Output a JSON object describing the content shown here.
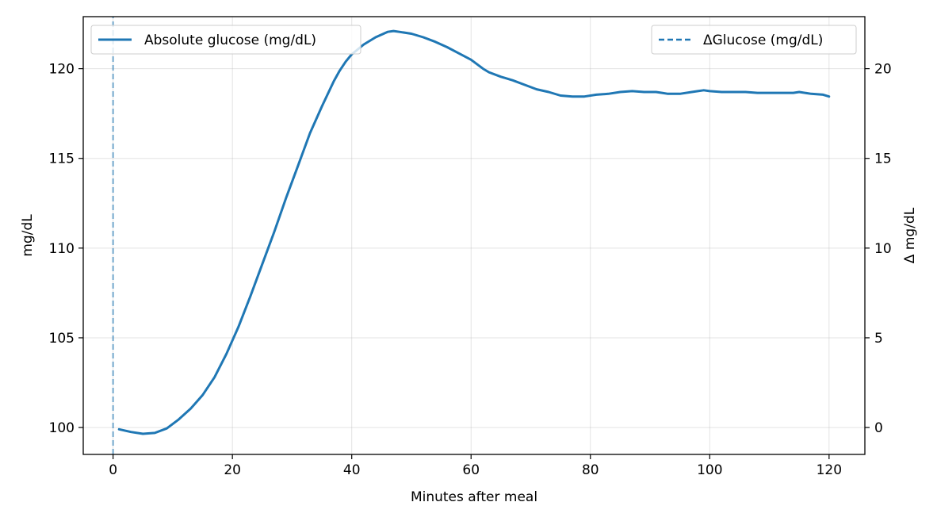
{
  "chart_data": {
    "type": "line",
    "xlabel": "Minutes after meal",
    "ylabel": "mg/dL",
    "y2label": "Δ mg/dL",
    "xlim": [
      -5,
      126
    ],
    "ylim": [
      98.5,
      122.9
    ],
    "y2lim": [
      -1.5,
      22.9
    ],
    "x_ticks": [
      0,
      20,
      40,
      60,
      80,
      100,
      120
    ],
    "y_ticks": [
      100,
      105,
      110,
      115,
      120
    ],
    "y2_ticks": [
      0,
      5,
      10,
      15,
      20
    ],
    "grid": true,
    "colors": {
      "series": "#1f77b4",
      "delta_line": "#1f77b4"
    },
    "series": [
      {
        "name": "Absolute glucose (mg/dL)",
        "axis": "left",
        "style": "solid",
        "x": [
          1,
          3,
          5,
          7,
          9,
          11,
          13,
          15,
          17,
          19,
          21,
          23,
          25,
          27,
          29,
          31,
          33,
          35,
          37,
          38,
          39,
          40,
          42,
          44,
          46,
          47,
          48,
          50,
          52,
          54,
          56,
          58,
          60,
          62,
          63,
          65,
          67,
          69,
          71,
          73,
          75,
          77,
          79,
          81,
          83,
          85,
          87,
          89,
          91,
          92,
          93,
          94,
          95,
          97,
          98,
          99,
          100,
          102,
          104,
          106,
          108,
          110,
          112,
          114,
          115,
          117,
          119,
          120
        ],
        "y": [
          99.9,
          99.75,
          99.65,
          99.7,
          99.95,
          100.45,
          101.05,
          101.8,
          102.8,
          104.1,
          105.6,
          107.3,
          109.1,
          110.9,
          112.8,
          114.6,
          116.4,
          117.9,
          119.3,
          119.9,
          120.4,
          120.8,
          121.35,
          121.75,
          122.05,
          122.1,
          122.05,
          121.95,
          121.75,
          121.5,
          121.2,
          120.85,
          120.5,
          120.0,
          119.8,
          119.55,
          119.35,
          119.1,
          118.85,
          118.7,
          118.5,
          118.45,
          118.45,
          118.55,
          118.6,
          118.7,
          118.75,
          118.7,
          118.7,
          118.65,
          118.6,
          118.6,
          118.6,
          118.7,
          118.75,
          118.8,
          118.75,
          118.7,
          118.7,
          118.7,
          118.65,
          118.65,
          118.65,
          118.65,
          118.7,
          118.6,
          118.55,
          118.45
        ]
      },
      {
        "name": "ΔGlucose (mg/dL)",
        "axis": "right",
        "style": "dashed",
        "x": [
          0,
          0
        ],
        "y": [
          -1.5,
          22.9
        ]
      }
    ],
    "legend": [
      {
        "label": "Absolute glucose (mg/dL)",
        "placement": "top-left",
        "style": "solid"
      },
      {
        "label": "ΔGlucose (mg/dL)",
        "placement": "top-right",
        "style": "dashed"
      }
    ]
  }
}
